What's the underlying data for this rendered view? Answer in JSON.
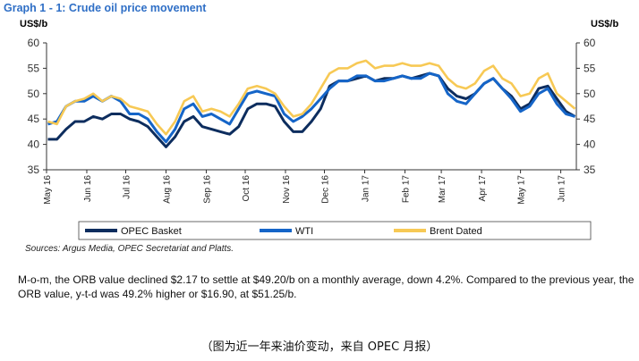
{
  "title": "Graph 1 - 1: Crude oil price movement",
  "source": "Sources: Argus Media, OPEC Secretariat and Platts.",
  "paragraph": "M-o-m, the ORB value declined $2.17 to settle at $49.20/b on a monthly average, down 4.2%. Compared to the previous year, the ORB value, y-t-d was 49.2% higher or $16.90, at $51.25/b.",
  "caption": "（图为近一年来油价变动，来自 OPEC 月报）",
  "chart_data": {
    "type": "line",
    "title": "Graph 1 - 1: Crude oil price movement",
    "ylabel_left": "US$/b",
    "ylabel_right": "US$/b",
    "ylim": [
      35,
      60
    ],
    "yticks": [
      35,
      40,
      45,
      50,
      55,
      60
    ],
    "xlim": [
      "2016-05-01",
      "2017-06-13"
    ],
    "xtick_labels": [
      "May 16",
      "Jun 16",
      "Jul 16",
      "Aug 16",
      "Sep 16",
      "Oct 16",
      "Nov 16",
      "Dec 16",
      "Jan 17",
      "Feb 17",
      "Mar 17",
      "Apr 17",
      "May 17",
      "Jun 17"
    ],
    "xtick_dates": [
      "2016-05-01",
      "2016-06-01",
      "2016-07-01",
      "2016-08-01",
      "2016-09-01",
      "2016-10-01",
      "2016-11-01",
      "2016-12-01",
      "2017-01-01",
      "2017-02-01",
      "2017-03-01",
      "2017-04-01",
      "2017-05-01",
      "2017-06-01"
    ],
    "grid": false,
    "legend": "bottom",
    "x_start": "2016-05-02",
    "x_step_days": 7,
    "series": [
      {
        "name": "OPEC Basket",
        "color": "#0d2d5e",
        "values": [
          41,
          41,
          43,
          44.5,
          44.5,
          45.5,
          45,
          46,
          46,
          45,
          44.5,
          43.5,
          41.5,
          39.5,
          41.5,
          44.5,
          45.5,
          43.5,
          43,
          42.5,
          42,
          43.5,
          47,
          48,
          48,
          47.5,
          44.5,
          42.5,
          42.5,
          44.5,
          47,
          51.5,
          52.5,
          52.5,
          53,
          53.5,
          52.5,
          53,
          53,
          53.5,
          53,
          53.5,
          54,
          53.5,
          51,
          49.5,
          49,
          50,
          52,
          53,
          51,
          49.5,
          47,
          48,
          51,
          51.5,
          49,
          46.5,
          45.5
        ]
      },
      {
        "name": "WTI",
        "color": "#1565c8",
        "values": [
          44,
          44.5,
          47.5,
          48.5,
          48.5,
          49.5,
          48.5,
          49.5,
          48.5,
          46,
          46,
          45,
          42.5,
          40.5,
          43,
          47,
          48,
          45.5,
          46,
          45,
          44,
          47,
          50,
          50.5,
          50,
          49.5,
          46,
          44.5,
          45.5,
          47,
          49,
          51,
          52.5,
          52.5,
          53.5,
          53.5,
          52.5,
          52.5,
          53,
          53.5,
          53,
          53,
          54,
          53.5,
          50,
          48.5,
          48,
          50,
          52,
          53,
          51,
          49,
          46.5,
          47.5,
          50,
          51,
          48,
          46,
          45.5
        ]
      },
      {
        "name": "Brent Dated",
        "color": "#f7c955",
        "values": [
          44.5,
          44,
          47.5,
          48.5,
          49,
          50,
          48.5,
          49.5,
          49,
          47.5,
          47,
          46.5,
          44,
          42,
          44.5,
          48.5,
          49.5,
          46.5,
          47,
          46.5,
          45.5,
          48,
          51,
          51.5,
          51,
          50,
          47.5,
          45.5,
          46,
          48,
          51,
          54,
          55,
          55,
          56,
          56.5,
          55,
          55.5,
          55.5,
          56,
          55.5,
          55.5,
          56,
          55.5,
          53,
          51.5,
          51,
          52,
          54.5,
          55.5,
          53,
          52,
          49.5,
          50,
          53,
          54,
          50,
          48.5,
          47
        ]
      }
    ]
  }
}
